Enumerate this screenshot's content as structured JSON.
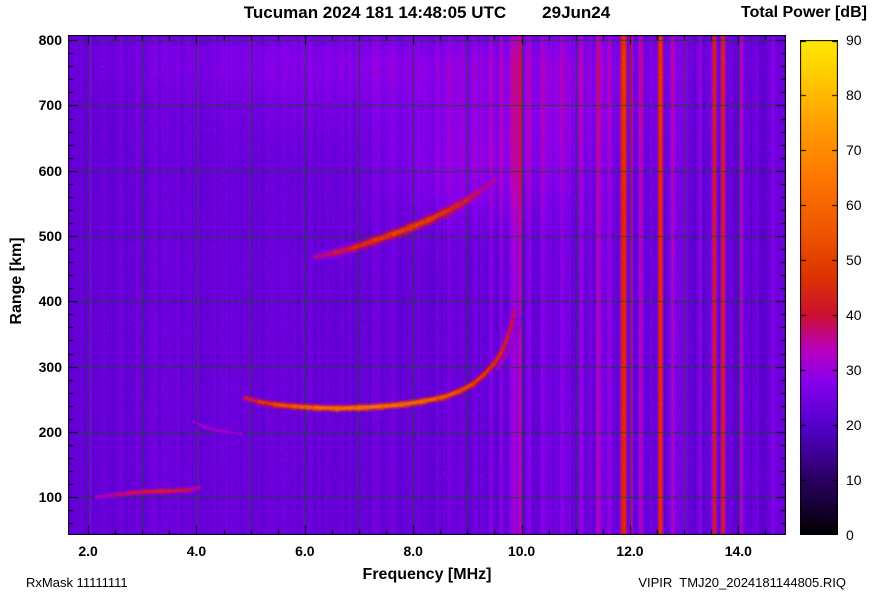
{
  "header": {
    "title": "Tucuman 2024 181 14:48:05 UTC",
    "date": "29Jun24",
    "colorbar_title": "Total Power [dB]"
  },
  "footer": {
    "rx_mask": "RxMask 11111111",
    "station_file": "VIPIR  TMJ20_2024181144805.RIQ"
  },
  "chart_data": {
    "type": "heatmap",
    "title": "Tucuman 2024 181 14:48:05 UTC  29Jun24",
    "xlabel": "Frequency [MHz]",
    "ylabel": "Range [km]",
    "x_range_mhz": [
      1.63,
      14.88
    ],
    "y_range_km": [
      42,
      808
    ],
    "x_ticks": [
      {
        "v": 2,
        "label": "2.0"
      },
      {
        "v": 4,
        "label": "4.0"
      },
      {
        "v": 6,
        "label": "6.0"
      },
      {
        "v": 8,
        "label": "8.0"
      },
      {
        "v": 10,
        "label": "10.0"
      },
      {
        "v": 12,
        "label": "12.0"
      },
      {
        "v": 14,
        "label": "14.0"
      }
    ],
    "x_minor_step_mhz": 0.5,
    "x_grid_mhz": [
      2,
      3,
      4,
      5,
      6,
      7,
      8,
      9,
      10,
      11,
      12,
      13,
      14
    ],
    "y_ticks": [
      {
        "v": 100,
        "label": "100"
      },
      {
        "v": 200,
        "label": "200"
      },
      {
        "v": 300,
        "label": "300"
      },
      {
        "v": 400,
        "label": "400"
      },
      {
        "v": 500,
        "label": "500"
      },
      {
        "v": 600,
        "label": "600"
      },
      {
        "v": 700,
        "label": "700"
      },
      {
        "v": 800,
        "label": "800"
      }
    ],
    "y_minor_step_km": 20,
    "y_grid_km": [
      100,
      200,
      300,
      400,
      500,
      600,
      700,
      800
    ],
    "grid_color": "rgba(0,90,0,0.7)",
    "colorbar": {
      "label": "Total Power [dB]",
      "min": 0,
      "max": 90,
      "ticks": [
        {
          "v": 0,
          "label": "0"
        },
        {
          "v": 10,
          "label": "10"
        },
        {
          "v": 20,
          "label": "20"
        },
        {
          "v": 30,
          "label": "30"
        },
        {
          "v": 40,
          "label": "40"
        },
        {
          "v": 50,
          "label": "50"
        },
        {
          "v": 60,
          "label": "60"
        },
        {
          "v": 70,
          "label": "70"
        },
        {
          "v": 80,
          "label": "80"
        },
        {
          "v": 90,
          "label": "90"
        }
      ],
      "stops": [
        [
          0,
          "#000000"
        ],
        [
          10,
          "#2a0060"
        ],
        [
          20,
          "#5500cc"
        ],
        [
          28,
          "#8800ee"
        ],
        [
          34,
          "#bb00bb"
        ],
        [
          40,
          "#cc1133"
        ],
        [
          47,
          "#dd3300"
        ],
        [
          55,
          "#ee5500"
        ],
        [
          65,
          "#ff7700"
        ],
        [
          75,
          "#ffa000"
        ],
        [
          85,
          "#ffd400"
        ],
        [
          90,
          "#ffe800"
        ]
      ]
    },
    "background": {
      "base_db": 23,
      "column_noise": 1.3,
      "pixel_noise": 1.4
    },
    "rfi_stripes": [
      {
        "f": 2.05,
        "w": 0.05,
        "db": 26
      },
      {
        "f": 2.6,
        "w": 0.05,
        "db": 25
      },
      {
        "f": 3.25,
        "w": 0.05,
        "db": 25
      },
      {
        "f": 4.02,
        "w": 0.06,
        "db": 26
      },
      {
        "f": 4.55,
        "w": 0.05,
        "db": 25
      },
      {
        "f": 5.15,
        "w": 0.05,
        "db": 25
      },
      {
        "f": 6.4,
        "w": 0.05,
        "db": 25
      },
      {
        "f": 7.35,
        "w": 0.05,
        "db": 25
      },
      {
        "f": 8.65,
        "w": 0.05,
        "db": 25
      },
      {
        "f": 9.45,
        "w": 0.06,
        "db": 27
      },
      {
        "f": 9.62,
        "w": 0.06,
        "db": 29
      },
      {
        "f": 9.88,
        "w": 0.2,
        "db": 31
      },
      {
        "f": 9.97,
        "w": 0.07,
        "db": 36
      },
      {
        "f": 10.15,
        "w": 0.08,
        "db": 29
      },
      {
        "f": 10.4,
        "w": 0.12,
        "db": 27
      },
      {
        "f": 10.75,
        "w": 0.3,
        "db": 26
      },
      {
        "f": 11.1,
        "w": 0.08,
        "db": 28
      },
      {
        "f": 11.42,
        "w": 0.1,
        "db": 31
      },
      {
        "f": 11.62,
        "w": 0.07,
        "db": 28
      },
      {
        "f": 11.88,
        "w": 0.12,
        "db": 46
      },
      {
        "f": 12.03,
        "w": 0.07,
        "db": 34
      },
      {
        "f": 12.2,
        "w": 0.09,
        "db": 32
      },
      {
        "f": 12.38,
        "w": 0.06,
        "db": 28
      },
      {
        "f": 12.56,
        "w": 0.1,
        "db": 46
      },
      {
        "f": 12.78,
        "w": 0.09,
        "db": 32
      },
      {
        "f": 13.0,
        "w": 0.07,
        "db": 27
      },
      {
        "f": 13.3,
        "w": 0.08,
        "db": 29
      },
      {
        "f": 13.56,
        "w": 0.09,
        "db": 44
      },
      {
        "f": 13.72,
        "w": 0.08,
        "db": 43
      },
      {
        "f": 14.05,
        "w": 0.09,
        "db": 31
      },
      {
        "f": 14.35,
        "w": 0.07,
        "db": 28
      },
      {
        "f": 14.62,
        "w": 0.06,
        "db": 27
      }
    ],
    "haze": [
      {
        "f": 9.0,
        "km": 605,
        "f_sigma": 1.1,
        "km_sigma": 60,
        "db": 4.5
      },
      {
        "f": 8.0,
        "km": 730,
        "f_sigma": 2.8,
        "km_sigma": 50,
        "db": 3
      },
      {
        "f": 10.5,
        "km": 680,
        "f_sigma": 1.5,
        "km_sigma": 80,
        "db": 2.5
      },
      {
        "f": 7.5,
        "km": 770,
        "f_sigma": 4.0,
        "km_sigma": 30,
        "db": 2.5
      }
    ],
    "traces": [
      {
        "name": "e-layer-echo",
        "halo": 7,
        "core": 2.6,
        "fuzz": 160,
        "fuzz_sigma": 2.2,
        "seed": 11,
        "points": [
          [
            2.15,
            100,
            33
          ],
          [
            2.45,
            103,
            37
          ],
          [
            2.75,
            106,
            41
          ],
          [
            3.05,
            108,
            44
          ],
          [
            3.35,
            109,
            45
          ],
          [
            3.65,
            110,
            44
          ],
          [
            3.9,
            111,
            41
          ],
          [
            4.05,
            114,
            36
          ]
        ]
      },
      {
        "name": "e-f-retardation",
        "halo": 6,
        "core": 2.2,
        "fuzz": 80,
        "fuzz_sigma": 2.0,
        "seed": 12,
        "points": [
          [
            3.95,
            215,
            31
          ],
          [
            4.15,
            207,
            34
          ],
          [
            4.4,
            202,
            35
          ],
          [
            4.65,
            199,
            33
          ],
          [
            4.85,
            197,
            30
          ]
        ]
      },
      {
        "name": "f-layer-o-trace",
        "halo": 8,
        "core": 3,
        "fuzz": 260,
        "fuzz_sigma": 2.6,
        "seed": 13,
        "points": [
          [
            4.9,
            252,
            40
          ],
          [
            5.15,
            246,
            46
          ],
          [
            5.45,
            242,
            52
          ],
          [
            5.8,
            239,
            57
          ],
          [
            6.2,
            237,
            60
          ],
          [
            6.6,
            236,
            62
          ],
          [
            7.0,
            237,
            63
          ],
          [
            7.4,
            239,
            63
          ],
          [
            7.8,
            242,
            61
          ],
          [
            8.2,
            247,
            59
          ],
          [
            8.55,
            253,
            57
          ],
          [
            8.85,
            262,
            54
          ],
          [
            9.1,
            273,
            51
          ],
          [
            9.3,
            287,
            49
          ],
          [
            9.5,
            305,
            47
          ],
          [
            9.65,
            325,
            45
          ],
          [
            9.75,
            347,
            42
          ],
          [
            9.82,
            367,
            40
          ],
          [
            9.87,
            385,
            38
          ]
        ]
      },
      {
        "name": "f-layer-x-trace",
        "halo": 5,
        "core": 2,
        "fuzz": 90,
        "fuzz_sigma": 1.8,
        "seed": 14,
        "points": [
          [
            9.55,
            297,
            36
          ],
          [
            9.72,
            316,
            36
          ],
          [
            9.85,
            338,
            35
          ],
          [
            9.93,
            360,
            34
          ],
          [
            9.98,
            383,
            33
          ]
        ]
      },
      {
        "name": "second-hop-trace",
        "halo": 11,
        "core": 3.6,
        "fuzz": 420,
        "fuzz_sigma": 4.5,
        "seed": 15,
        "points": [
          [
            6.2,
            468,
            35
          ],
          [
            6.55,
            474,
            41
          ],
          [
            6.9,
            482,
            46
          ],
          [
            7.25,
            492,
            49
          ],
          [
            7.6,
            502,
            51
          ],
          [
            7.95,
            513,
            52
          ],
          [
            8.3,
            525,
            51
          ],
          [
            8.6,
            537,
            49
          ],
          [
            8.85,
            548,
            46
          ],
          [
            9.05,
            558,
            43
          ],
          [
            9.25,
            570,
            39
          ],
          [
            9.5,
            585,
            35
          ]
        ]
      }
    ]
  }
}
